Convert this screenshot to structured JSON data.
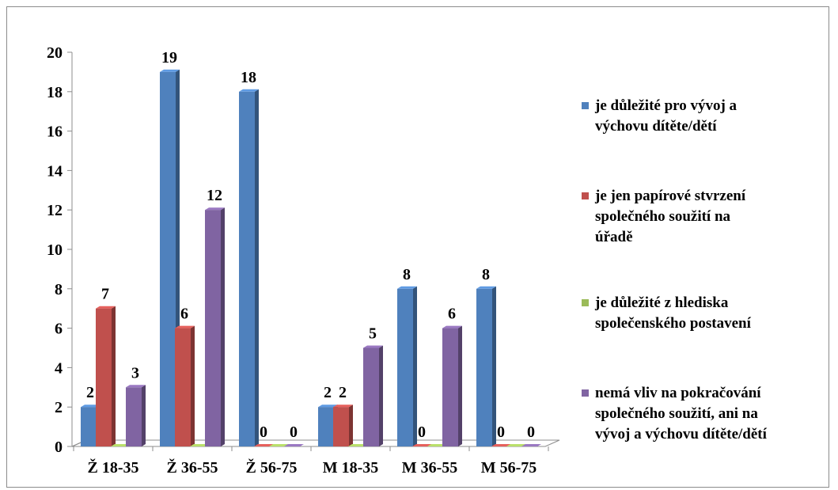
{
  "chart_data": {
    "type": "bar",
    "categories": [
      "Ž 18-35",
      "Ž 36-55",
      "Ž 56-75",
      "M 18-35",
      "M 36-55",
      "M 56-75"
    ],
    "series": [
      {
        "name": "je důležité pro vývoj a výchovu dítěte/dětí",
        "color": "#4f81bd",
        "values": [
          2,
          19,
          18,
          2,
          8,
          8
        ]
      },
      {
        "name": "je jen papírové stvrzení společného soužití na úřadě",
        "color": "#c0504d",
        "values": [
          7,
          6,
          0,
          2,
          0,
          0
        ]
      },
      {
        "name": "je důležité z hlediska společenského postavení",
        "color": "#9bbb59",
        "values": [
          0,
          0,
          0,
          0,
          0,
          0
        ]
      },
      {
        "name": " nemá vliv na pokračování společného soužití, ani na vývoj a výchovu dítěte/dětí",
        "color": "#8064a2",
        "values": [
          3,
          12,
          0,
          5,
          6,
          0
        ]
      }
    ],
    "data_labels": [
      [
        "2",
        "19",
        "18",
        "2",
        "8",
        "8"
      ],
      [
        "7",
        "6",
        "0",
        "2",
        "0",
        "0"
      ],
      [
        "",
        "",
        "",
        "",
        "",
        ""
      ],
      [
        "3",
        "12",
        "0",
        "5",
        "6",
        "0"
      ]
    ],
    "y_ticks": [
      "0",
      "2",
      "4",
      "6",
      "8",
      "10",
      "12",
      "14",
      "16",
      "18",
      "20"
    ],
    "ylim": [
      0,
      20
    ],
    "grid": false,
    "legend_position": "right",
    "legend_lines": [
      "je důležité pro vývoj a\nvýchovu dítěte/dětí",
      "je jen papírové stvrzení\nspolečného soužití na\núřadě",
      "je důležité z hlediska\nspolečenského postavení",
      " nemá vliv na pokračování\nspolečného soužití, ani na\nvývoj a výchovu dítěte/dětí"
    ]
  }
}
